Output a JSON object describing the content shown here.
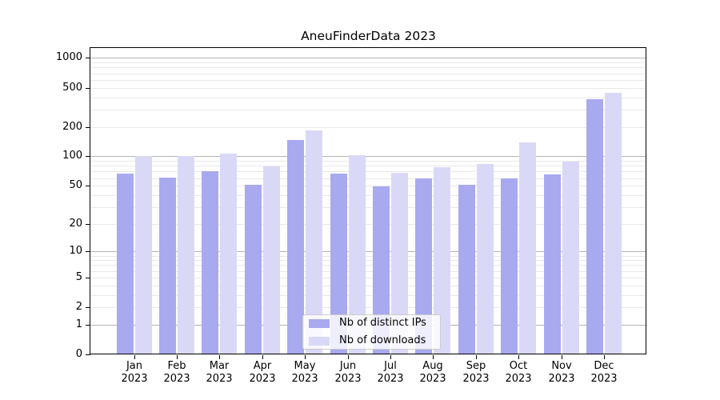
{
  "chart_data": {
    "type": "bar",
    "title": "AneuFinderData 2023",
    "categories": [
      "Jan",
      "Feb",
      "Mar",
      "Apr",
      "May",
      "Jun",
      "Jul",
      "Aug",
      "Sep",
      "Oct",
      "Nov",
      "Dec"
    ],
    "category_year": "2023",
    "series": [
      {
        "name": "Nb of distinct IPs",
        "color": "#a9a9f0",
        "values": [
          66,
          61,
          71,
          51,
          147,
          67,
          49,
          59,
          51,
          60,
          65,
          385
        ]
      },
      {
        "name": "Nb of downloads",
        "color": "#d9d9f7",
        "values": [
          100,
          100,
          107,
          79,
          184,
          103,
          68,
          77,
          83,
          138,
          88,
          440
        ]
      }
    ],
    "y_axis": {
      "scale": "log10(value+1)",
      "tick_values": [
        0,
        1,
        2,
        5,
        10,
        20,
        50,
        100,
        200,
        500,
        1000
      ],
      "tick_labels": [
        "0",
        "1",
        "2",
        "5",
        "10",
        "20",
        "50",
        "100",
        "200",
        "500",
        "1000"
      ],
      "major_gridlines": [
        1,
        10,
        100,
        1000
      ],
      "minor_gridlines": [
        2,
        3,
        4,
        5,
        6,
        7,
        8,
        9,
        20,
        30,
        40,
        50,
        60,
        70,
        80,
        90,
        200,
        300,
        400,
        500,
        600,
        700,
        800,
        900
      ],
      "major_grid_color": "#b4b4b4",
      "minor_grid_color": "#e8e8e8",
      "ylim_top": 1250
    },
    "x_axis": {
      "tick_label_lines": 2
    },
    "legend": {
      "position": "bottom-center"
    },
    "grid": true,
    "background_color": "#ffffff",
    "spine_color": "#000000"
  }
}
